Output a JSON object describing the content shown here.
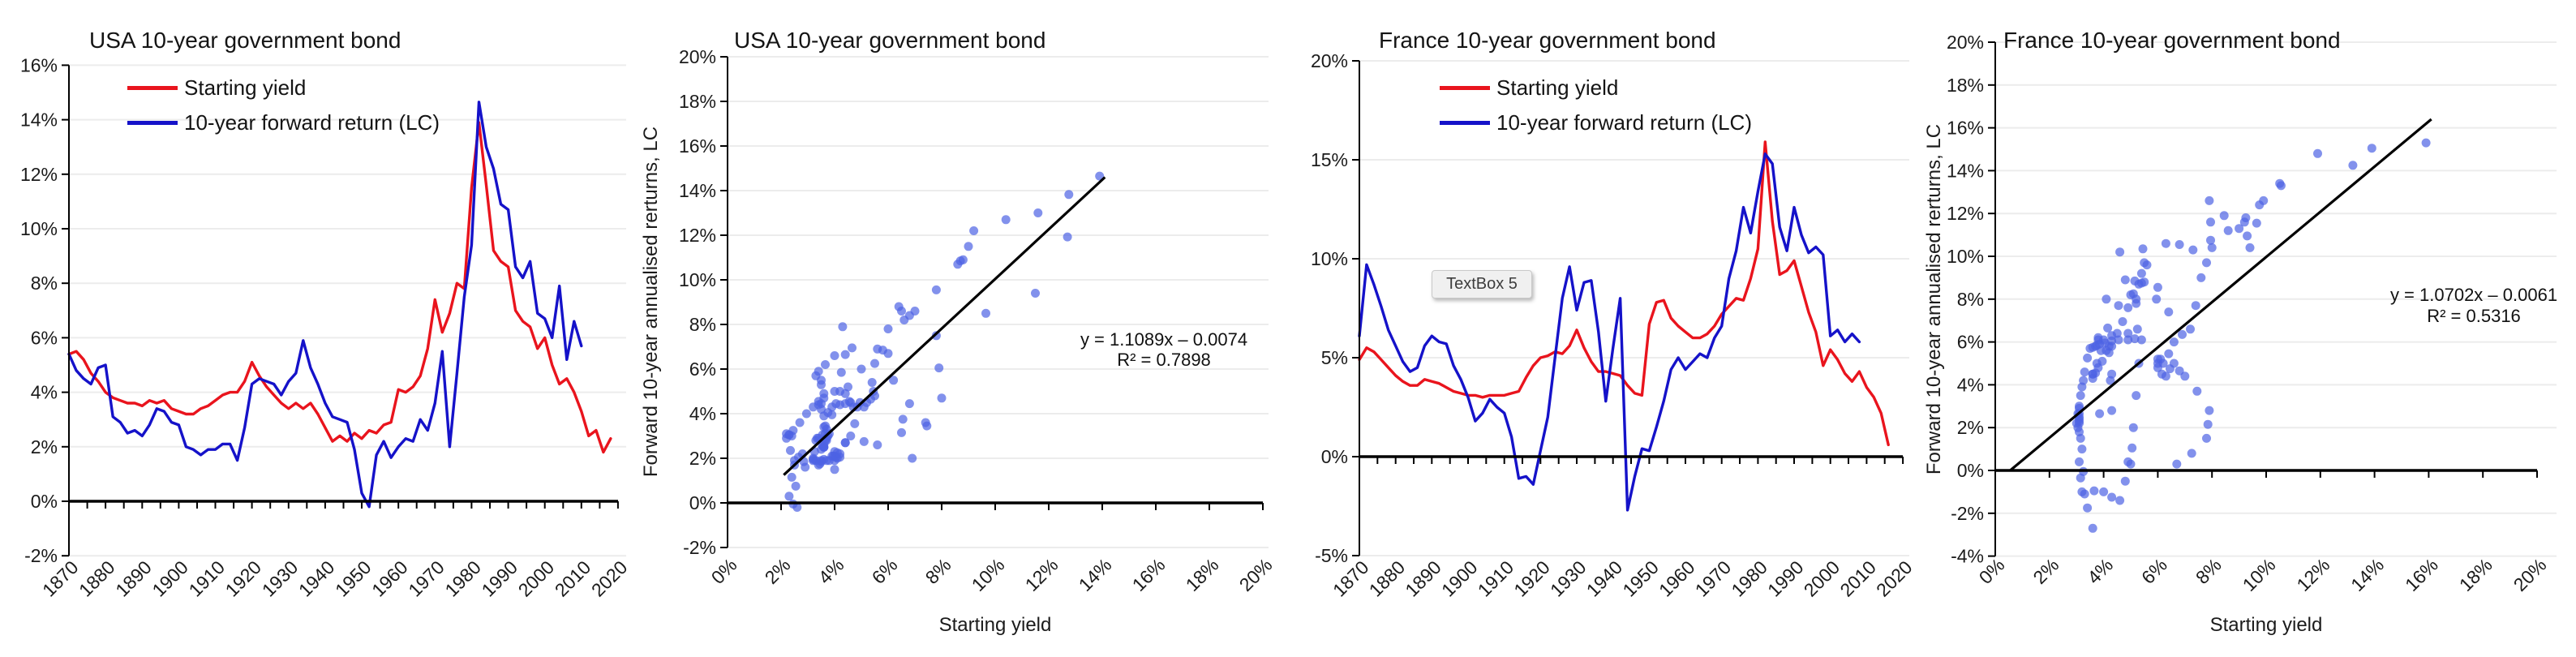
{
  "colors": {
    "red": "#e9141d",
    "blue": "#1512c9",
    "scatter": "#4d63e4",
    "grid": "#ececec",
    "axis": "#000000",
    "text": "#1b1b1b"
  },
  "chart_data": [
    {
      "type": "line",
      "title": "USA 10-year government bond",
      "legend": [
        {
          "label": "Starting yield",
          "color_key": "red"
        },
        {
          "label": "10-year forward return (LC)",
          "color_key": "blue"
        }
      ],
      "y_axis": {
        "min": -2,
        "max": 16,
        "step": 2
      },
      "y_tick_labels": [
        "-2%",
        "0%",
        "2%",
        "4%",
        "6%",
        "8%",
        "10%",
        "12%",
        "14%",
        "16%"
      ],
      "x_axis": {
        "min": 1870,
        "max": 2020,
        "tick_step": 5,
        "label_step": 10
      },
      "x_tick_labels": [
        "1870",
        "1880",
        "1890",
        "1900",
        "1910",
        "1920",
        "1930",
        "1940",
        "1950",
        "1960",
        "1970",
        "1980",
        "1990",
        "2000",
        "2010",
        "2020"
      ],
      "series": [
        {
          "name": "Starting yield",
          "color_key": "red",
          "start": 1870,
          "step": 2,
          "values": [
            5.4,
            5.5,
            5.2,
            4.7,
            4.4,
            4.0,
            3.8,
            3.7,
            3.6,
            3.6,
            3.5,
            3.7,
            3.6,
            3.7,
            3.4,
            3.3,
            3.2,
            3.2,
            3.4,
            3.5,
            3.7,
            3.9,
            4.0,
            4.0,
            4.4,
            5.1,
            4.6,
            4.2,
            3.9,
            3.6,
            3.4,
            3.6,
            3.4,
            3.6,
            3.2,
            2.7,
            2.2,
            2.4,
            2.2,
            2.5,
            2.3,
            2.6,
            2.5,
            2.8,
            2.9,
            4.1,
            4.0,
            4.2,
            4.6,
            5.6,
            7.4,
            6.2,
            6.9,
            8.0,
            7.8,
            11.5,
            13.9,
            11.6,
            9.2,
            8.8,
            8.6,
            7.0,
            6.6,
            6.4,
            5.6,
            6.0,
            5.0,
            4.3,
            4.5,
            4.0,
            3.3,
            2.4,
            2.6,
            1.8,
            2.3
          ]
        },
        {
          "name": "10-year forward return (LC)",
          "color_key": "blue",
          "start": 1870,
          "step": 2,
          "values": [
            5.4,
            4.8,
            4.5,
            4.3,
            4.9,
            5.0,
            3.1,
            2.9,
            2.5,
            2.6,
            2.4,
            2.8,
            3.4,
            3.3,
            2.9,
            2.8,
            2.0,
            1.9,
            1.7,
            1.9,
            1.9,
            2.1,
            2.1,
            1.5,
            2.7,
            4.3,
            4.5,
            4.4,
            4.3,
            3.9,
            4.4,
            4.7,
            5.9,
            4.9,
            4.3,
            3.6,
            3.1,
            3.0,
            2.9,
            1.9,
            0.3,
            -0.2,
            1.7,
            2.2,
            1.6,
            2.0,
            2.3,
            2.2,
            3.0,
            2.6,
            3.6,
            5.5,
            2.0,
            4.7,
            7.5,
            9.4,
            14.65,
            13.0,
            12.2,
            10.9,
            10.7,
            8.6,
            8.2,
            8.8,
            6.9,
            6.7,
            6.0,
            7.9,
            5.2,
            6.6,
            5.7
          ]
        }
      ]
    },
    {
      "type": "scatter",
      "title": "USA 10-year government bond",
      "x_title": "Starting yield",
      "y_title": "Forward 10-year annualised rerturns, LC",
      "equation": "y = 1.1089x – 0.0074",
      "r2": "R² = 0.7898",
      "y_axis": {
        "min": -2,
        "max": 20,
        "step": 2
      },
      "y_tick_labels": [
        "-2%",
        "0%",
        "2%",
        "4%",
        "6%",
        "8%",
        "10%",
        "12%",
        "14%",
        "16%",
        "18%",
        "20%"
      ],
      "x_axis": {
        "min": 0,
        "max": 20,
        "tick_step": 2,
        "label_step": 2
      },
      "x_tick_labels": [
        "0%",
        "2%",
        "4%",
        "6%",
        "8%",
        "10%",
        "12%",
        "14%",
        "16%",
        "18%",
        "20%"
      ],
      "trendline": {
        "x1": 2.1,
        "y1": 1.25,
        "x2": 14.1,
        "y2": 14.6
      },
      "source_chart": 0
    },
    {
      "type": "line",
      "title": "France 10-year government bond",
      "textbox": "TextBox 5",
      "legend": [
        {
          "label": "Starting yield",
          "color_key": "red"
        },
        {
          "label": "10-year forward return (LC)",
          "color_key": "blue"
        }
      ],
      "y_axis": {
        "min": -5,
        "max": 20,
        "step": 5
      },
      "y_tick_labels": [
        "-5%",
        "0%",
        "5%",
        "10%",
        "15%",
        "20%"
      ],
      "x_axis": {
        "min": 1870,
        "max": 2020,
        "tick_step": 5,
        "label_step": 10
      },
      "x_tick_labels": [
        "1870",
        "1880",
        "1890",
        "1900",
        "1910",
        "1920",
        "1930",
        "1940",
        "1950",
        "1960",
        "1970",
        "1980",
        "1990",
        "2000",
        "2010",
        "2020"
      ],
      "series": [
        {
          "name": "Starting yield",
          "color_key": "red",
          "start": 1870,
          "step": 2,
          "values": [
            4.9,
            5.5,
            5.3,
            4.9,
            4.5,
            4.1,
            3.8,
            3.6,
            3.6,
            3.9,
            3.8,
            3.7,
            3.5,
            3.3,
            3.2,
            3.1,
            3.1,
            3.0,
            3.1,
            3.1,
            3.1,
            3.2,
            3.3,
            4.0,
            4.6,
            5.0,
            5.1,
            5.3,
            5.2,
            5.6,
            6.4,
            5.5,
            4.8,
            4.3,
            4.3,
            4.2,
            4.1,
            3.6,
            3.2,
            3.1,
            6.7,
            7.8,
            7.9,
            7.0,
            6.6,
            6.3,
            6.0,
            6.0,
            6.2,
            6.6,
            7.2,
            7.6,
            8.0,
            7.9,
            9.0,
            10.5,
            15.9,
            11.9,
            9.2,
            9.4,
            9.9,
            8.6,
            7.3,
            6.3,
            4.6,
            5.4,
            4.9,
            4.2,
            3.8,
            4.3,
            3.5,
            3.0,
            2.2,
            0.6
          ]
        },
        {
          "name": "10-year forward return (LC)",
          "color_key": "blue",
          "start": 1870,
          "step": 2,
          "values": [
            6.1,
            9.7,
            8.7,
            7.6,
            6.4,
            5.6,
            4.8,
            4.3,
            4.5,
            5.6,
            6.1,
            5.8,
            5.7,
            4.6,
            3.9,
            3.0,
            1.8,
            2.2,
            2.9,
            2.5,
            2.2,
            1.0,
            -1.1,
            -1.0,
            -1.4,
            0.3,
            2.0,
            5.0,
            8.0,
            9.6,
            7.4,
            8.8,
            8.9,
            6.3,
            2.8,
            5.5,
            8.0,
            -2.7,
            -1.0,
            0.4,
            0.3,
            1.5,
            2.8,
            4.4,
            5.0,
            4.4,
            4.8,
            5.2,
            5.0,
            6.0,
            6.6,
            9.0,
            10.4,
            12.6,
            11.3,
            13.4,
            15.3,
            14.8,
            11.6,
            10.4,
            12.6,
            11.2,
            10.3,
            10.6,
            10.2,
            6.1,
            6.4,
            5.8,
            6.2,
            5.8
          ]
        }
      ]
    },
    {
      "type": "scatter",
      "title": "France 10-year government bond",
      "x_title": "Starting yield",
      "y_title": "Forward 10-year annualised rerturns, LC",
      "equation": "y = 1.0702x – 0.0061",
      "r2": "R² = 0.5316",
      "y_axis": {
        "min": -4,
        "max": 20,
        "step": 2
      },
      "y_tick_labels": [
        "-4%",
        "-2%",
        "0%",
        "2%",
        "4%",
        "6%",
        "8%",
        "10%",
        "12%",
        "14%",
        "16%",
        "18%",
        "20%"
      ],
      "x_axis": {
        "min": 0,
        "max": 20,
        "tick_step": 2,
        "label_step": 2
      },
      "x_tick_labels": [
        "0%",
        "2%",
        "4%",
        "6%",
        "8%",
        "10%",
        "12%",
        "14%",
        "16%",
        "18%",
        "20%"
      ],
      "trendline": {
        "x1": 0.55,
        "y1": 0.0,
        "x2": 16.1,
        "y2": 16.4
      },
      "source_chart": 2
    }
  ]
}
